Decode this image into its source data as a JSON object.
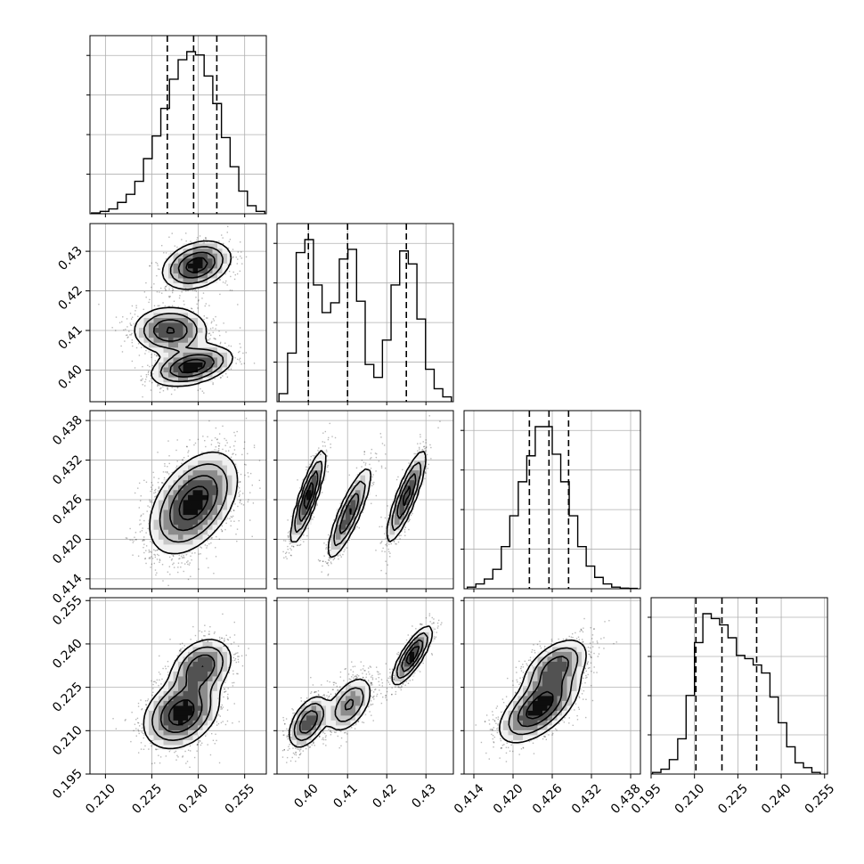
{
  "chart_data": {
    "type": "corner",
    "parameters": [
      {
        "index": 0,
        "range": [
          0.205,
          0.262
        ],
        "ticks": [
          "0.210",
          "0.225",
          "0.240",
          "0.255"
        ],
        "tick_values": [
          0.21,
          0.225,
          0.24,
          0.255
        ],
        "quantiles": [
          0.23,
          0.2385,
          0.246
        ]
      },
      {
        "index": 1,
        "range": [
          0.392,
          0.437
        ],
        "ticks": [
          "0.40",
          "0.41",
          "0.42",
          "0.43"
        ],
        "tick_values": [
          0.4,
          0.41,
          0.42,
          0.43
        ],
        "quantiles": [
          0.4,
          0.41,
          0.425
        ]
      },
      {
        "index": 2,
        "range": [
          0.4125,
          0.4395
        ],
        "ticks": [
          "0.414",
          "0.420",
          "0.426",
          "0.432",
          "0.438"
        ],
        "tick_values": [
          0.414,
          0.42,
          0.426,
          0.432,
          0.438
        ],
        "quantiles": [
          0.4225,
          0.4255,
          0.4285
        ]
      },
      {
        "index": 3,
        "range": [
          0.195,
          0.256
        ],
        "ticks": [
          "0.195",
          "0.210",
          "0.225",
          "0.240",
          "0.255"
        ],
        "tick_values": [
          0.195,
          0.21,
          0.225,
          0.24,
          0.255
        ],
        "quantiles": [
          0.2105,
          0.2195,
          0.2315
        ]
      }
    ],
    "histograms": [
      {
        "param": 0,
        "bin_edges": [
          0.2055,
          0.2083,
          0.2111,
          0.2139,
          0.2167,
          0.2195,
          0.2223,
          0.2251,
          0.2279,
          0.2307,
          0.2335,
          0.2363,
          0.2391,
          0.2419,
          0.2447,
          0.2475,
          0.2503,
          0.2531,
          0.2559,
          0.2587,
          0.2615
        ],
        "counts": [
          0.5,
          1.5,
          3,
          7,
          12,
          20,
          34,
          48,
          65,
          83,
          95,
          100,
          98,
          85,
          68,
          47,
          29,
          14,
          5,
          1.5
        ]
      },
      {
        "param": 1,
        "bin_edges": [
          0.3925,
          0.3947,
          0.3969,
          0.3991,
          0.4013,
          0.4035,
          0.4057,
          0.4079,
          0.4101,
          0.4123,
          0.4145,
          0.4167,
          0.4189,
          0.4211,
          0.4233,
          0.4255,
          0.4277,
          0.4299,
          0.4321,
          0.4343,
          0.4365
        ],
        "counts": [
          5,
          30,
          92,
          100,
          72,
          55,
          61,
          88,
          94,
          62,
          23,
          15,
          38,
          72,
          93,
          85,
          51,
          20,
          8,
          3
        ]
      },
      {
        "param": 2,
        "bin_edges": [
          0.413,
          0.4143,
          0.4156,
          0.4169,
          0.4182,
          0.4195,
          0.4208,
          0.4221,
          0.4234,
          0.4247,
          0.426,
          0.4273,
          0.4286,
          0.4299,
          0.4312,
          0.4325,
          0.4338,
          0.4351,
          0.4364,
          0.4377,
          0.439
        ],
        "counts": [
          1,
          3,
          6,
          12,
          26,
          45,
          66,
          82,
          100,
          100,
          83,
          66,
          45,
          26,
          14,
          7,
          3,
          1,
          0.4,
          0.2
        ]
      },
      {
        "param": 3,
        "bin_edges": [
          0.1955,
          0.1984,
          0.2013,
          0.2042,
          0.2071,
          0.21,
          0.2129,
          0.2158,
          0.2187,
          0.2216,
          0.2245,
          0.2274,
          0.2303,
          0.2332,
          0.2361,
          0.239,
          0.2419,
          0.2448,
          0.2477,
          0.2506,
          0.2535
        ],
        "counts": [
          1,
          3,
          9,
          22,
          49,
          82,
          100,
          97,
          93,
          85,
          74,
          72,
          68,
          63,
          48,
          32,
          17,
          7,
          4,
          1
        ]
      }
    ],
    "pairs": [
      {
        "x_param": 0,
        "y_param": 1,
        "modes": [
          {
            "cx": 0.2395,
            "cy": 0.4265,
            "sx": 0.0055,
            "sy": 0.003,
            "rho": 0.3,
            "w": 0.34
          },
          {
            "cx": 0.231,
            "cy": 0.41,
            "sx": 0.006,
            "sy": 0.003,
            "rho": 0.0,
            "w": 0.33
          },
          {
            "cx": 0.238,
            "cy": 0.401,
            "sx": 0.0065,
            "sy": 0.0025,
            "rho": 0.4,
            "w": 0.33
          }
        ]
      },
      {
        "x_param": 0,
        "y_param": 2,
        "modes": [
          {
            "cx": 0.2385,
            "cy": 0.4255,
            "sx": 0.007,
            "sy": 0.0038,
            "rho": 0.45,
            "w": 1.0
          }
        ]
      },
      {
        "x_param": 1,
        "y_param": 2,
        "modes": [
          {
            "cx": 0.4,
            "cy": 0.4265,
            "sx": 0.0022,
            "sy": 0.0035,
            "rho": 0.85,
            "w": 0.33
          },
          {
            "cx": 0.4105,
            "cy": 0.424,
            "sx": 0.0028,
            "sy": 0.0035,
            "rho": 0.85,
            "w": 0.34
          },
          {
            "cx": 0.425,
            "cy": 0.4265,
            "sx": 0.0025,
            "sy": 0.0035,
            "rho": 0.85,
            "w": 0.33
          }
        ]
      },
      {
        "x_param": 0,
        "y_param": 3,
        "modes": [
          {
            "cx": 0.2345,
            "cy": 0.216,
            "sx": 0.006,
            "sy": 0.006,
            "rho": 0.3,
            "w": 0.65
          },
          {
            "cx": 0.241,
            "cy": 0.232,
            "sx": 0.005,
            "sy": 0.005,
            "rho": 0.3,
            "w": 0.35
          }
        ]
      },
      {
        "x_param": 1,
        "y_param": 3,
        "modes": [
          {
            "cx": 0.4,
            "cy": 0.213,
            "sx": 0.0025,
            "sy": 0.0045,
            "rho": 0.5,
            "w": 0.34
          },
          {
            "cx": 0.4105,
            "cy": 0.219,
            "sx": 0.003,
            "sy": 0.005,
            "rho": 0.5,
            "w": 0.33
          },
          {
            "cx": 0.4265,
            "cy": 0.236,
            "sx": 0.0025,
            "sy": 0.005,
            "rho": 0.8,
            "w": 0.33
          }
        ]
      },
      {
        "x_param": 2,
        "y_param": 3,
        "modes": [
          {
            "cx": 0.424,
            "cy": 0.218,
            "sx": 0.003,
            "sy": 0.006,
            "rho": 0.6,
            "w": 0.65
          },
          {
            "cx": 0.4265,
            "cy": 0.232,
            "sx": 0.0025,
            "sy": 0.005,
            "rho": 0.5,
            "w": 0.35
          }
        ]
      }
    ],
    "grid": true,
    "scatter_color": "#000000",
    "contour_color": "#000000"
  }
}
